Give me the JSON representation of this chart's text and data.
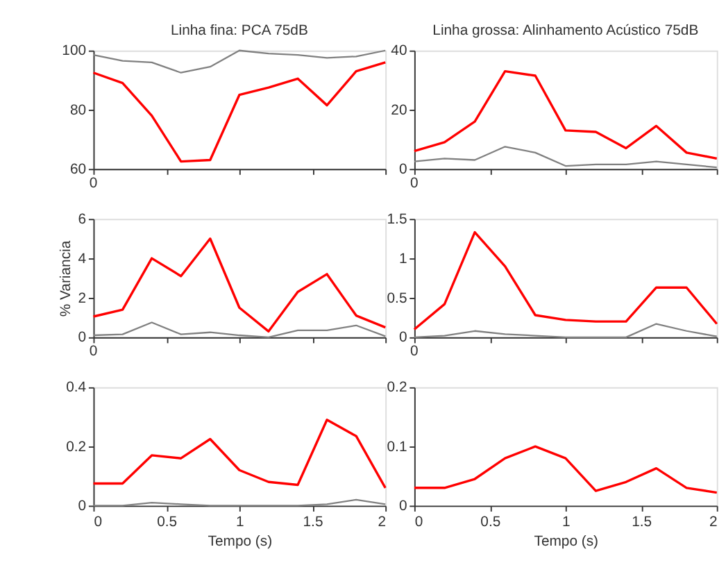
{
  "chart_data": [
    {
      "type": "line",
      "title": "Linha fina: PCA 75dB",
      "annotations": [
        "0"
      ],
      "tick_labels": "y",
      "x": [
        0,
        0.2,
        0.4,
        0.6,
        0.8,
        1,
        1.2,
        1.4,
        1.6,
        1.8,
        2
      ],
      "xlim": [
        0,
        2
      ],
      "xticks": [
        0,
        0.5,
        1,
        1.5,
        2
      ],
      "ylim": [
        60,
        100
      ],
      "yticks": [
        60,
        80,
        100
      ],
      "grid": false,
      "series": [
        {
          "color": "#808080",
          "values": [
            98.5,
            96.5,
            96,
            92.5,
            94.5,
            100,
            99,
            98.5,
            97.5,
            98,
            100
          ]
        },
        {
          "color": "#ff0000",
          "values": [
            92.5,
            89,
            78,
            62.5,
            63,
            85,
            87.5,
            90.5,
            81.5,
            93,
            96
          ]
        }
      ]
    },
    {
      "type": "line",
      "title": "Linha grossa: Alinhamento Acústico 75dB",
      "annotations": [
        "0"
      ],
      "tick_labels": "y",
      "x": [
        0,
        0.2,
        0.4,
        0.6,
        0.8,
        1,
        1.2,
        1.4,
        1.6,
        1.8,
        2
      ],
      "xlim": [
        0,
        2
      ],
      "xticks": [
        0,
        0.5,
        1,
        1.5,
        2
      ],
      "ylim": [
        0,
        40
      ],
      "yticks": [
        0,
        20,
        40
      ],
      "grid": false,
      "series": [
        {
          "color": "#808080",
          "values": [
            2.5,
            3.5,
            3,
            7.5,
            5.5,
            1,
            1.5,
            1.5,
            2.5,
            1.5,
            0.5
          ]
        },
        {
          "color": "#ff0000",
          "values": [
            6,
            9,
            16,
            33,
            31.5,
            13,
            12.5,
            7,
            14.5,
            5.5,
            3.5
          ]
        }
      ]
    },
    {
      "type": "line",
      "ylabel": "% Variancia",
      "annotations": [
        "0"
      ],
      "tick_labels": "y",
      "x": [
        0,
        0.2,
        0.4,
        0.6,
        0.8,
        1,
        1.2,
        1.4,
        1.6,
        1.8,
        2
      ],
      "xlim": [
        0,
        2
      ],
      "xticks": [
        0,
        0.5,
        1,
        1.5,
        2
      ],
      "ylim": [
        0,
        6
      ],
      "yticks": [
        0,
        2,
        4,
        6
      ],
      "grid": false,
      "series": [
        {
          "color": "#808080",
          "values": [
            0.1,
            0.15,
            0.75,
            0.15,
            0.25,
            0.1,
            0,
            0.35,
            0.35,
            0.6,
            0.05
          ]
        },
        {
          "color": "#ff0000",
          "values": [
            1.05,
            1.4,
            4,
            3.1,
            5,
            1.5,
            0.3,
            2.3,
            3.2,
            1.1,
            0.5
          ]
        }
      ]
    },
    {
      "type": "line",
      "annotations": [
        "0"
      ],
      "tick_labels": "y",
      "x": [
        0,
        0.2,
        0.4,
        0.6,
        0.8,
        1,
        1.2,
        1.4,
        1.6,
        1.8,
        2
      ],
      "xlim": [
        0,
        2
      ],
      "xticks": [
        0,
        0.5,
        1,
        1.5,
        2
      ],
      "ylim": [
        0,
        1.5
      ],
      "yticks": [
        0,
        0.5,
        1,
        1.5
      ],
      "grid": false,
      "series": [
        {
          "color": "#808080",
          "values": [
            0,
            0.02,
            0.08,
            0.04,
            0.02,
            0,
            0,
            0,
            0.17,
            0.08,
            0.01
          ]
        },
        {
          "color": "#ff0000",
          "values": [
            0.1,
            0.42,
            1.33,
            0.9,
            0.28,
            0.22,
            0.2,
            0.2,
            0.63,
            0.63,
            0.17
          ]
        }
      ]
    },
    {
      "type": "line",
      "xlabel": "Tempo (s)",
      "x": [
        0,
        0.2,
        0.4,
        0.6,
        0.8,
        1,
        1.2,
        1.4,
        1.6,
        1.8,
        2
      ],
      "xlim": [
        0,
        2
      ],
      "xticks": [
        0,
        0.5,
        1,
        1.5,
        2
      ],
      "ylim": [
        0,
        0.4
      ],
      "yticks": [
        0,
        0.2,
        0.4
      ],
      "grid": false,
      "series": [
        {
          "color": "#808080",
          "values": [
            0,
            0,
            0.01,
            0.005,
            0,
            0,
            0,
            0,
            0.005,
            0.02,
            0.005
          ]
        },
        {
          "color": "#ff0000",
          "values": [
            0.075,
            0.075,
            0.17,
            0.16,
            0.225,
            0.12,
            0.08,
            0.07,
            0.29,
            0.235,
            0.06
          ]
        }
      ]
    },
    {
      "type": "line",
      "xlabel": "Tempo (s)",
      "x": [
        0,
        0.2,
        0.4,
        0.6,
        0.8,
        1,
        1.2,
        1.4,
        1.6,
        1.8,
        2
      ],
      "xlim": [
        0,
        2
      ],
      "xticks": [
        0,
        0.5,
        1,
        1.5,
        2
      ],
      "ylim": [
        0,
        0.2
      ],
      "yticks": [
        0,
        0.1,
        0.2
      ],
      "grid": false,
      "series": [
        {
          "color": "#ff0000",
          "values": [
            0.03,
            0.03,
            0.045,
            0.08,
            0.1,
            0.08,
            0.025,
            0.04,
            0.063,
            0.03,
            0.022
          ]
        }
      ]
    }
  ]
}
